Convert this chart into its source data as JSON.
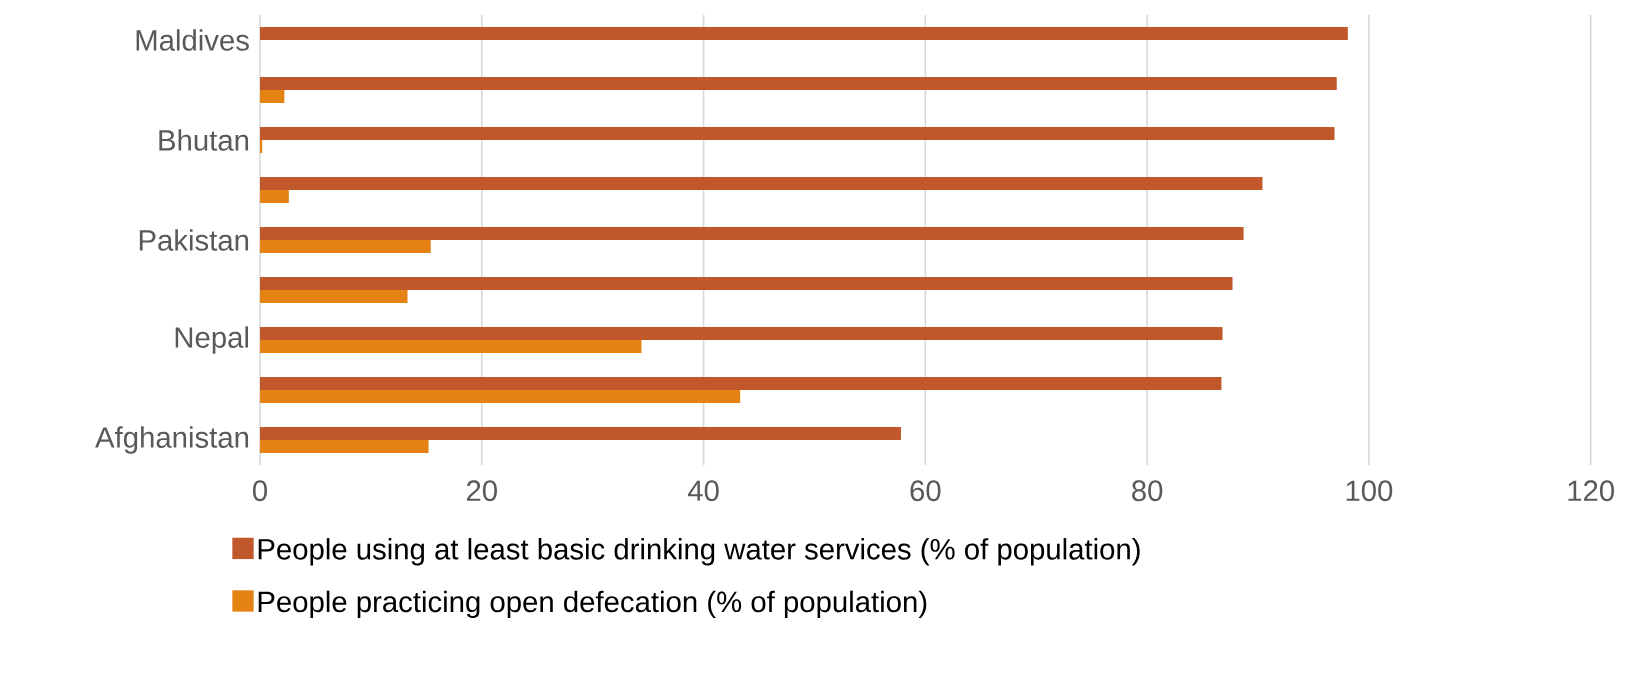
{
  "chart_data": {
    "type": "bar",
    "orientation": "horizontal",
    "categories": [
      "Maldives",
      null,
      "Bhutan",
      null,
      "Pakistan",
      null,
      "Nepal",
      null,
      "Afghanistan"
    ],
    "series": [
      {
        "name": "People using at least basic drinking water services (% of population)",
        "color": "#c0582c",
        "values": [
          98.1,
          97.1,
          96.9,
          90.4,
          88.7,
          87.7,
          86.8,
          86.7,
          57.8
        ]
      },
      {
        "name": "People practicing open defecation (% of population)",
        "color": "#e58214",
        "values": [
          null,
          2.2,
          0.2,
          2.6,
          15.4,
          13.3,
          34.4,
          43.3,
          15.2
        ]
      }
    ],
    "xlim": [
      0,
      120
    ],
    "xticks": [
      0,
      20,
      40,
      60,
      80,
      100,
      120
    ],
    "grid": "x",
    "legend": "bottom"
  }
}
